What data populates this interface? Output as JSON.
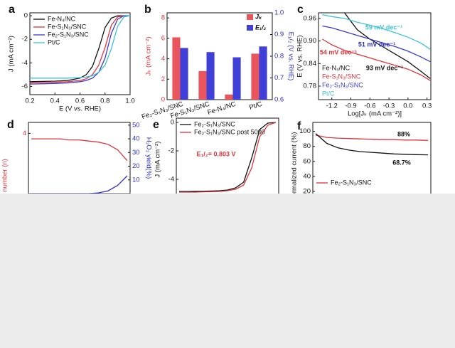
{
  "chart_data": [
    {
      "type": "line",
      "panel_label": "a",
      "x_label": "E (V vs. RHE)",
      "y_label": "J (mA cm⁻²)",
      "xlim": [
        0.2,
        1.0
      ],
      "xticks": [
        0.2,
        0.4,
        0.6,
        0.8,
        {
          "value": 1.0,
          "label": "1.0"
        }
      ],
      "ylim": [
        -6.7,
        0.25
      ],
      "yticks": [
        -6,
        -4,
        -2,
        0
      ],
      "legend": "upper left",
      "x": [
        0.2,
        0.4,
        0.5,
        0.6,
        0.65,
        0.7,
        0.75,
        0.8,
        0.85,
        0.9,
        0.95,
        1.0
      ],
      "series": [
        {
          "name": "Fe-N₄/NC",
          "color": "#111111",
          "values": [
            -5.6,
            -5.55,
            -5.5,
            -5.3,
            -5.0,
            -4.3,
            -2.8,
            -1.0,
            -0.2,
            0,
            0,
            0
          ]
        },
        {
          "name": "Fe-S₁N₃/SNC",
          "color": "#e0333c",
          "values": [
            -5.7,
            -5.65,
            -5.6,
            -5.5,
            -5.35,
            -5.0,
            -4.2,
            -2.7,
            -0.8,
            -0.1,
            0,
            0
          ]
        },
        {
          "name": "Fe₂-S₁N₃/SNC",
          "color": "#3b3bc8",
          "values": [
            -5.8,
            -5.75,
            -5.7,
            -5.6,
            -5.5,
            -5.3,
            -4.8,
            -3.6,
            -1.5,
            -0.3,
            0,
            0
          ]
        },
        {
          "name": "Pt/C",
          "color": "#3cc3d6",
          "values": [
            -5.3,
            -5.3,
            -5.3,
            -5.25,
            -5.2,
            -5.1,
            -4.8,
            -4.2,
            -2.8,
            -0.9,
            -0.1,
            0
          ]
        }
      ]
    },
    {
      "type": "bar",
      "panel_label": "b",
      "y_label": "Jₖ (mA cm⁻²)",
      "y2_label": "E₁/₂ (V vs. RHE)",
      "ylim": [
        0,
        8.5
      ],
      "yticks": [
        0,
        2,
        4,
        6,
        8
      ],
      "y2lim": [
        0.6,
        1.0
      ],
      "y2ticks": [
        0.6,
        0.7,
        0.8,
        0.9,
        {
          "value": 1.0,
          "label": "1.0"
        }
      ],
      "y_axis_color": "#e0333c",
      "y2_axis_color": "#2b2bc8",
      "legend": "upper right",
      "categories": [
        "Fe₂-S₁N₃/SNC",
        "Fe-S₁N₃/SNC",
        "Fe-N₄/NC",
        "Pt/C"
      ],
      "series": [
        {
          "name": "Jₖ",
          "color": "#e8555c",
          "values": [
            6.1,
            2.8,
            0.5,
            4.5
          ]
        },
        {
          "name": "E₁/₂",
          "color": "#4040d8",
          "axis": "y2",
          "values": [
            0.838,
            0.819,
            0.795,
            0.845
          ]
        }
      ]
    },
    {
      "type": "line",
      "panel_label": "c",
      "x_label": "Log[Jₖ (mA cm⁻²)]",
      "y_label": "E (V vs. RHE)",
      "xlim": [
        -1.41,
        0.36
      ],
      "xticks": [
        -1.2,
        -0.9,
        -0.6,
        -0.3,
        {
          "value": 0,
          "label": "0.0"
        },
        0.3
      ],
      "ylim": [
        0.744,
        0.975
      ],
      "yticks": [
        0.78,
        0.84,
        {
          "value": 0.9,
          "label": "0.90"
        },
        0.96
      ],
      "legend": "lower left",
      "legend_style": "colored text",
      "x": [
        -1.35,
        -1.2,
        -1.0,
        -0.8,
        -0.6,
        -0.4,
        -0.2,
        0,
        0.2,
        0.35
      ],
      "series": [
        {
          "name": "Fe-N₄/NC",
          "color": "#111111",
          "values": [
            null,
            null,
            0.975,
            0.93,
            0.905,
            0.885,
            0.865,
            0.845,
            0.82,
            0.8
          ]
        },
        {
          "name": "Fe-S₁N₃/SNC",
          "color": "#e0333c",
          "values": [
            0.905,
            0.89,
            0.875,
            0.865,
            0.855,
            0.845,
            0.835,
            0.825,
            0.81,
            0.795
          ]
        },
        {
          "name": "Fe₂-S₁N₃/SNC",
          "color": "#3b3bc8",
          "values": [
            0.94,
            0.935,
            0.925,
            0.915,
            0.905,
            0.895,
            0.885,
            0.873,
            0.858,
            0.845
          ]
        },
        {
          "name": "Pt/C",
          "color": "#3cc3d6",
          "values": [
            0.97,
            0.965,
            0.96,
            0.95,
            0.942,
            0.933,
            0.922,
            0.91,
            0.895,
            0.878
          ]
        }
      ],
      "annotations": [
        {
          "text": "59 mV dec⁻¹",
          "color": "#3cc3d6"
        },
        {
          "text": "51 mV dec⁻¹",
          "color": "#2b2bc8"
        },
        {
          "text": "54 mV dec⁻¹",
          "color": "#e0333c"
        },
        {
          "text": "93 mV dec⁻¹",
          "color": "#111111"
        }
      ]
    },
    {
      "type": "line",
      "panel_label": "d",
      "y_label": "ron transfer number (n)",
      "y2_label": "H₂O₂ yield(%)",
      "ylim": [
        3.45,
        4.1
      ],
      "yticks": [
        4
      ],
      "y2lim": [
        0,
        52
      ],
      "y2ticks": [
        10,
        20,
        30,
        40,
        50
      ],
      "y_axis_color": "#e0333c",
      "y2_axis_color": "#2b2bc8",
      "series": [
        {
          "color": "#e0333c",
          "values": [
            3.95,
            3.95,
            3.95,
            3.95,
            3.94,
            3.94,
            3.93,
            3.92,
            3.9,
            3.85,
            3.75
          ]
        },
        {
          "color": "#2b2bc8",
          "axis": "y2",
          "values": [
            0,
            0,
            0,
            0,
            0,
            0,
            0,
            0.5,
            2,
            6,
            13
          ]
        }
      ]
    },
    {
      "type": "line",
      "panel_label": "e",
      "y_label": "J (mA cm⁻²)",
      "ylim": [
        -5.5,
        0.3
      ],
      "yticks": [
        -4,
        -2,
        0
      ],
      "legend": "upper left",
      "series": [
        {
          "name": "Fe₂-S₁N₃/SNC",
          "color": "#111111",
          "values": [
            -4.85,
            -4.85,
            -4.84,
            -4.83,
            -4.82,
            -4.8,
            -4.75,
            -4.6,
            -4.2,
            -2.5,
            -0.5,
            -0.05,
            0
          ]
        },
        {
          "name": "Fe₂-S₁N₃/SNC post 5000",
          "color": "#e0333c",
          "values": [
            -4.9,
            -4.9,
            -4.9,
            -4.88,
            -4.87,
            -4.85,
            -4.8,
            -4.7,
            -4.4,
            -3.2,
            -1.0,
            -0.2,
            0
          ]
        }
      ],
      "annotations": [
        {
          "text": "E₁/₂= 0.803 V",
          "color": "#e0333c"
        }
      ]
    },
    {
      "type": "line",
      "panel_label": "f",
      "y_label": "ormalized current (%)",
      "ylim": [
        0,
        112
      ],
      "yticks": [
        20,
        40,
        60,
        80,
        100
      ],
      "legend": "lower left",
      "series": [
        {
          "name": "Fe₂-S₁N₃/SNC",
          "color": "#e0333c",
          "values": [
            95,
            92,
            91,
            90.5,
            90,
            89.5,
            89,
            89,
            88.5,
            88.5,
            88
          ]
        },
        {
          "color": "#111111",
          "values": [
            97,
            84,
            78,
            75,
            73,
            72,
            71,
            70,
            69.5,
            69,
            68.7
          ]
        }
      ],
      "annotations": [
        {
          "text": "88%",
          "color": "#111111"
        },
        {
          "text": "68.7%",
          "color": "#111111"
        }
      ]
    }
  ]
}
